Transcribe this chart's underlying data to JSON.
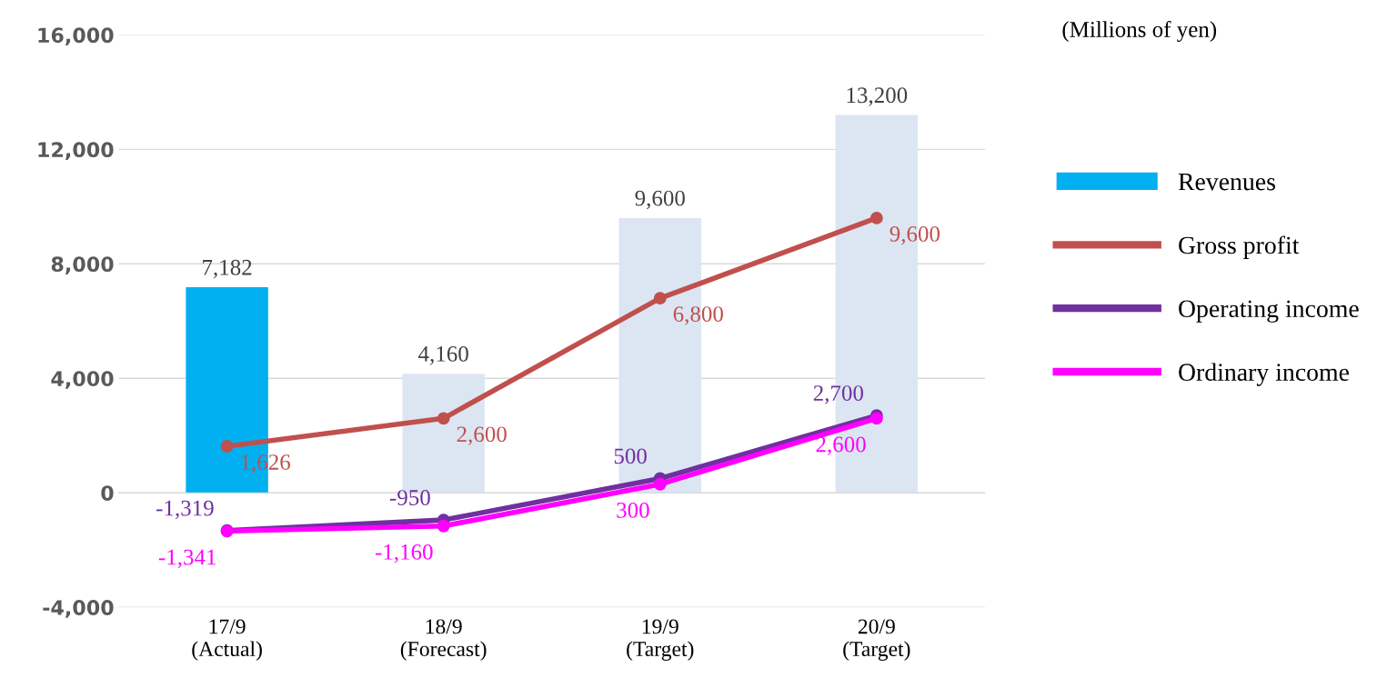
{
  "chart_data": {
    "type": "bar",
    "categories": [
      "17/9\n(Actual)",
      "18/9\n(Forecast)",
      "19/9\n(Target)",
      "20/9\n(Target)"
    ],
    "series": [
      {
        "name": "Revenues",
        "colors": [
          "#00b0f0",
          "#dce6f2",
          "#dce6f2",
          "#dce6f2"
        ],
        "values": [
          7182,
          4160,
          9600,
          13200
        ],
        "value_labels": [
          "7,182",
          "4,160",
          "9,600",
          "13,200"
        ]
      },
      {
        "name": "Gross profit",
        "type": "line",
        "color": "#c0504d",
        "values": [
          1626,
          2600,
          6800,
          9600
        ],
        "value_labels": [
          "1,626",
          "2,600",
          "6,800",
          "9,600"
        ]
      },
      {
        "name": "Operating income",
        "type": "line",
        "color": "#7030a0",
        "values": [
          -1319,
          -950,
          500,
          2700
        ],
        "value_labels": [
          "-1,319",
          "-950",
          "500",
          "2,700"
        ]
      },
      {
        "name": "Ordinary income",
        "type": "line",
        "color": "#ff00ff",
        "values": [
          -1341,
          -1160,
          300,
          2600
        ],
        "value_labels": [
          "-1,341",
          "-1,160",
          "300",
          "2,600"
        ]
      }
    ],
    "ylim": [
      -4000,
      16000
    ],
    "yticks": [
      {
        "value": -4000,
        "label": "-4,000"
      },
      {
        "value": 0,
        "label": "0"
      },
      {
        "value": 4000,
        "label": "4,000"
      },
      {
        "value": 8000,
        "label": "8,000"
      },
      {
        "value": 12000,
        "label": "12,000"
      },
      {
        "value": 16000,
        "label": "16,000"
      }
    ],
    "grid": "y",
    "legend": "right",
    "marker": "circle",
    "annotations": [
      "(Millions of yen)"
    ]
  }
}
